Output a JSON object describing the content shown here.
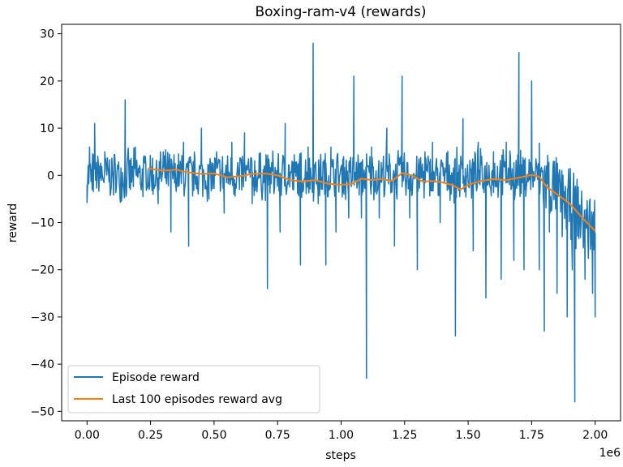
{
  "chart_data": {
    "type": "line",
    "title": "Boxing-ram-v4 (rewards)",
    "xlabel": "steps",
    "ylabel": "reward",
    "x_offset_label": "1e6",
    "xlim": [
      -0.1,
      2.1
    ],
    "ylim": [
      -52,
      32
    ],
    "x_ticks": [
      0.0,
      0.25,
      0.5,
      0.75,
      1.0,
      1.25,
      1.5,
      1.75,
      2.0
    ],
    "x_tick_labels": [
      "0.00",
      "0.25",
      "0.50",
      "0.75",
      "1.00",
      "1.25",
      "1.50",
      "1.75",
      "2.00"
    ],
    "y_ticks": [
      -50,
      -40,
      -30,
      -20,
      -10,
      0,
      10,
      20,
      30
    ],
    "y_tick_labels": [
      "−50",
      "−40",
      "−30",
      "−20",
      "−10",
      "0",
      "10",
      "20",
      "30"
    ],
    "legend_position": "lower-left",
    "grid": false,
    "series": [
      {
        "name": "Episode reward",
        "color": "#1f77b4",
        "keypoints": [
          [
            0.0,
            -2
          ],
          [
            0.01,
            6
          ],
          [
            0.02,
            -3
          ],
          [
            0.03,
            11
          ],
          [
            0.05,
            2
          ],
          [
            0.07,
            5
          ],
          [
            0.09,
            -2
          ],
          [
            0.11,
            3
          ],
          [
            0.13,
            -5
          ],
          [
            0.15,
            16
          ],
          [
            0.17,
            -3
          ],
          [
            0.19,
            6
          ],
          [
            0.21,
            -2
          ],
          [
            0.23,
            4
          ],
          [
            0.25,
            1
          ],
          [
            0.28,
            -6
          ],
          [
            0.3,
            5
          ],
          [
            0.33,
            -12
          ],
          [
            0.36,
            3
          ],
          [
            0.38,
            7
          ],
          [
            0.4,
            -15
          ],
          [
            0.42,
            2
          ],
          [
            0.45,
            10
          ],
          [
            0.48,
            -5
          ],
          [
            0.51,
            5
          ],
          [
            0.54,
            -8
          ],
          [
            0.57,
            7
          ],
          [
            0.6,
            -3
          ],
          [
            0.62,
            9
          ],
          [
            0.65,
            -6
          ],
          [
            0.68,
            4
          ],
          [
            0.71,
            -24
          ],
          [
            0.73,
            1
          ],
          [
            0.76,
            -12
          ],
          [
            0.78,
            11
          ],
          [
            0.81,
            -3
          ],
          [
            0.84,
            -19
          ],
          [
            0.87,
            6
          ],
          [
            0.89,
            28
          ],
          [
            0.91,
            -6
          ],
          [
            0.94,
            -19
          ],
          [
            0.96,
            6
          ],
          [
            0.98,
            -12
          ],
          [
            1.01,
            4
          ],
          [
            1.03,
            -9
          ],
          [
            1.05,
            21
          ],
          [
            1.08,
            -9
          ],
          [
            1.1,
            -43
          ],
          [
            1.12,
            6
          ],
          [
            1.15,
            -9
          ],
          [
            1.18,
            10
          ],
          [
            1.21,
            -15
          ],
          [
            1.24,
            21
          ],
          [
            1.27,
            -9
          ],
          [
            1.3,
            -20
          ],
          [
            1.33,
            5
          ],
          [
            1.36,
            7
          ],
          [
            1.39,
            -10
          ],
          [
            1.42,
            5
          ],
          [
            1.45,
            -34
          ],
          [
            1.48,
            12
          ],
          [
            1.52,
            -16
          ],
          [
            1.54,
            7
          ],
          [
            1.57,
            -26
          ],
          [
            1.6,
            5
          ],
          [
            1.63,
            -22
          ],
          [
            1.65,
            7
          ],
          [
            1.68,
            -18
          ],
          [
            1.7,
            26
          ],
          [
            1.72,
            -20
          ],
          [
            1.75,
            20
          ],
          [
            1.78,
            -20
          ],
          [
            1.8,
            -33
          ],
          [
            1.82,
            -12
          ],
          [
            1.85,
            -25
          ],
          [
            1.87,
            -13
          ],
          [
            1.89,
            -30
          ],
          [
            1.91,
            -20
          ],
          [
            1.92,
            -48
          ],
          [
            1.94,
            -10
          ],
          [
            1.96,
            -22
          ],
          [
            1.98,
            -5
          ],
          [
            1.99,
            -25
          ],
          [
            2.0,
            -30
          ]
        ]
      },
      {
        "name": "Last 100 episodes reward avg",
        "color": "#ff7f0e",
        "x": [
          0.24,
          0.3,
          0.35,
          0.4,
          0.45,
          0.5,
          0.55,
          0.6,
          0.65,
          0.7,
          0.75,
          0.8,
          0.85,
          0.9,
          0.95,
          1.0,
          1.04,
          1.08,
          1.12,
          1.16,
          1.2,
          1.24,
          1.28,
          1.32,
          1.36,
          1.4,
          1.44,
          1.47,
          1.5,
          1.55,
          1.6,
          1.65,
          1.7,
          1.75,
          1.78,
          1.81,
          1.85,
          1.9,
          1.95,
          2.0
        ],
        "y": [
          1.5,
          1.0,
          1.2,
          0.6,
          0.3,
          0.4,
          -0.4,
          -0.2,
          0.3,
          0.4,
          0.0,
          -1.0,
          -1.3,
          -1.0,
          -1.8,
          -2.0,
          -1.9,
          -0.7,
          -1.0,
          -0.8,
          -1.2,
          0.5,
          0.0,
          -1.3,
          -1.2,
          -1.5,
          -2.1,
          -3.0,
          -2.0,
          -1.2,
          -0.8,
          -1.0,
          -0.5,
          0.1,
          -0.3,
          -2.5,
          -4.0,
          -6.0,
          -9.0,
          -11.8
        ]
      }
    ]
  }
}
